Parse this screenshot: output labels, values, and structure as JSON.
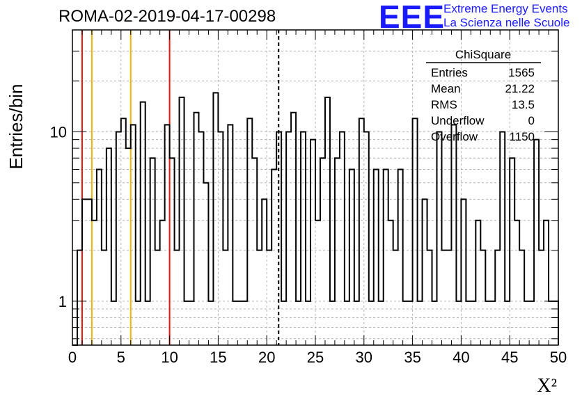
{
  "header": {
    "run_title": "ROMA-02-2019-04-17-00298",
    "logo_text": "EEE",
    "logo_line1": "Extreme Energy Events",
    "logo_line2": "La Scienza nelle Scuole"
  },
  "stats": {
    "title": "ChiSquare",
    "rows": [
      {
        "label": "Entries",
        "value": "1565"
      },
      {
        "label": "Mean",
        "value": "21.22"
      },
      {
        "label": "RMS",
        "value": "13.5"
      },
      {
        "label": "Underflow",
        "value": "0"
      },
      {
        "label": "Overflow",
        "value": "1150"
      }
    ]
  },
  "colors": {
    "logo": "#1a1aff",
    "red_line": "#e8160c",
    "yellow_line": "#f0b400"
  },
  "chart_data": {
    "type": "histogram",
    "xlabel": "X²",
    "ylabel": "Entries/bin",
    "xlim": [
      0,
      50
    ],
    "ylim": [
      0.55,
      40
    ],
    "yscale": "log",
    "grid": true,
    "bin_width": 1,
    "x_ticks": [
      0,
      5,
      10,
      15,
      20,
      25,
      30,
      35,
      40,
      45,
      50
    ],
    "y_ticks": [
      1,
      10
    ],
    "values": [
      0,
      2,
      4,
      4,
      3,
      6,
      2,
      8,
      1,
      10,
      12,
      8,
      11,
      1,
      15,
      1,
      7,
      2,
      3,
      11,
      7,
      2,
      16,
      1,
      1,
      13,
      10,
      5,
      1,
      17,
      10,
      2,
      11,
      1,
      1,
      1,
      12,
      7,
      2,
      4,
      2,
      6,
      10,
      1,
      10,
      13,
      1,
      10,
      1,
      9,
      3,
      7,
      16,
      1,
      7,
      10,
      1,
      6,
      1,
      12,
      10,
      1,
      6,
      1,
      6,
      3,
      2,
      6,
      1,
      1,
      12,
      1,
      4,
      2,
      1,
      10,
      2,
      2,
      11,
      1,
      4,
      1,
      1,
      3,
      2,
      1,
      1,
      2,
      10,
      1,
      7,
      3,
      2,
      1,
      1,
      9,
      2,
      3,
      1,
      1
    ],
    "markers": [
      {
        "x": 1,
        "style": "red"
      },
      {
        "x": 2,
        "style": "yellow"
      },
      {
        "x": 6,
        "style": "yellow"
      },
      {
        "x": 10,
        "style": "red"
      },
      {
        "x": 21.22,
        "style": "mean-dashed"
      }
    ]
  }
}
